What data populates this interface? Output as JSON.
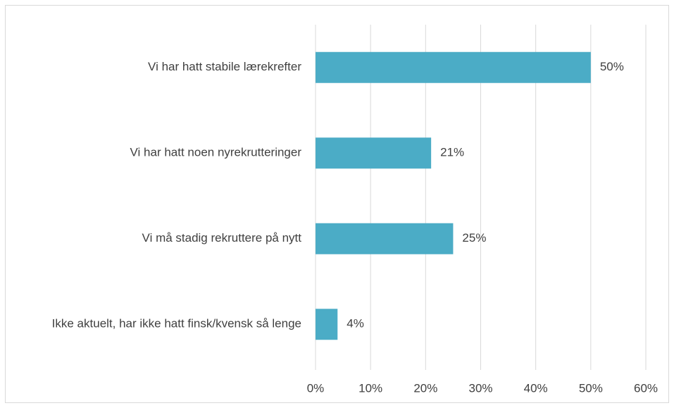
{
  "chart_data": {
    "type": "hbar",
    "categories": [
      "Vi har hatt stabile lærekrefter",
      "Vi har hatt noen nyrekrutteringer",
      "Vi må stadig rekruttere på nytt",
      "Ikke aktuelt, har ikke hatt finsk/kvensk så lenge"
    ],
    "values": [
      50,
      21,
      25,
      4
    ],
    "value_labels": [
      "50%",
      "21%",
      "25%",
      "4%"
    ],
    "color": "#4bacc6",
    "xlim": [
      0,
      60
    ],
    "xticks": [
      {
        "value": 0,
        "label": "0%"
      },
      {
        "value": 10,
        "label": "10%"
      },
      {
        "value": 20,
        "label": "20%"
      },
      {
        "value": 30,
        "label": "30%"
      },
      {
        "value": 40,
        "label": "40%"
      },
      {
        "value": 50,
        "label": "50%"
      },
      {
        "value": 60,
        "label": "60%"
      }
    ],
    "grid": true
  }
}
